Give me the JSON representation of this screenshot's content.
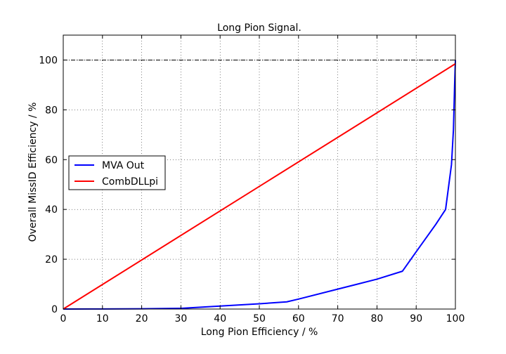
{
  "chart_data": {
    "type": "line",
    "title": "Long Pion Signal.",
    "xlabel": "Long Pion Efficiency / %",
    "ylabel": "Overall MissID Efficiency / %",
    "xlim": [
      0,
      100
    ],
    "ylim": [
      0,
      110
    ],
    "xticks": [
      "0",
      "10",
      "20",
      "30",
      "40",
      "50",
      "60",
      "70",
      "80",
      "90",
      "100"
    ],
    "yticks": [
      "0",
      "20",
      "40",
      "60",
      "80",
      "100"
    ],
    "grid": true,
    "legend_position": "center-left",
    "reference_line": {
      "y": 100,
      "style": "dash-dot",
      "color": "#000000"
    },
    "series": [
      {
        "name": "MVA Out",
        "color": "#0000ff",
        "x": [
          0,
          10,
          20,
          30,
          40,
          50,
          57,
          60,
          70,
          80,
          86.5,
          90,
          95,
          97.5,
          99,
          99.5,
          99.8,
          100
        ],
        "y": [
          0,
          0.05,
          0.1,
          0.3,
          1.2,
          2.1,
          2.9,
          4.0,
          8.0,
          12.0,
          15.2,
          23,
          34,
          40,
          58,
          72,
          90,
          100
        ]
      },
      {
        "name": "CombDLLpi",
        "color": "#ff0000",
        "x": [
          0,
          100
        ],
        "y": [
          0,
          98.5
        ]
      }
    ]
  }
}
